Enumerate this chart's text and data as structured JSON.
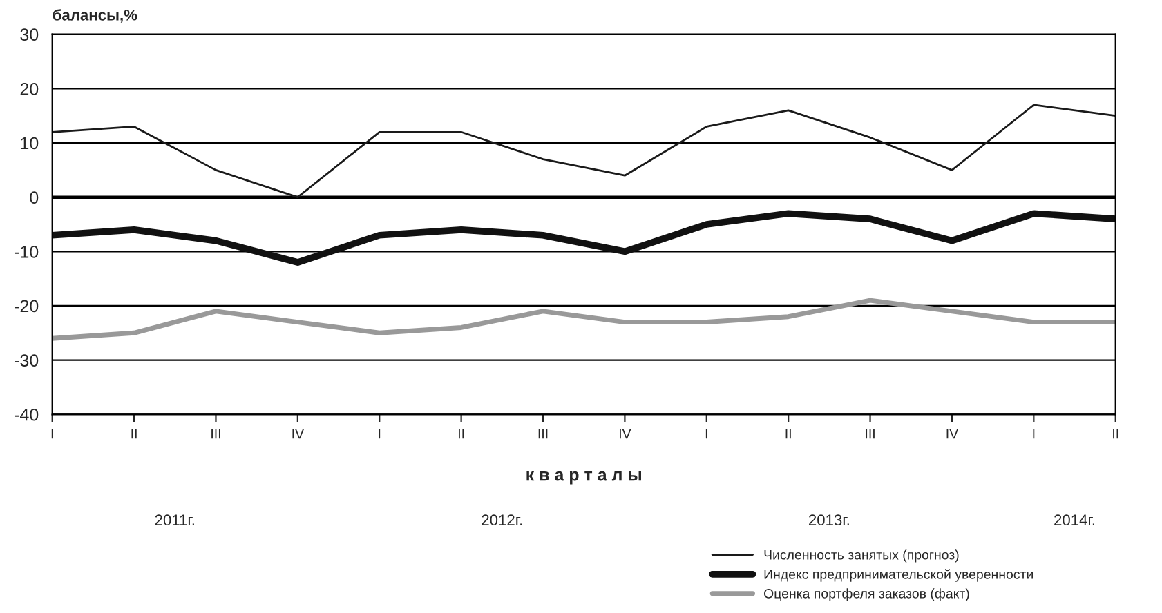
{
  "chart_data": {
    "type": "line",
    "ylabel": "балансы,%",
    "xlabel": "к в а р т а л ы",
    "categories": [
      "I",
      "II",
      "III",
      "IV",
      "I",
      "II",
      "III",
      "IV",
      "I",
      "II",
      "III",
      "IV",
      "I",
      "II"
    ],
    "series": [
      {
        "name": "Численность занятых (прогноз)",
        "color": "#1a1a1a",
        "values": [
          12,
          13,
          5,
          0,
          12,
          12,
          7,
          4,
          13,
          16,
          11,
          5,
          17,
          15
        ]
      },
      {
        "name": "Индекс предпринимательской уверенности",
        "color": "#111111",
        "values": [
          -7,
          -6,
          -8,
          -12,
          -7,
          -6,
          -7,
          -10,
          -5,
          -3,
          -4,
          -8,
          -3,
          -4
        ]
      },
      {
        "name": "Оценка портфеля заказов (факт)",
        "color": "#999999",
        "values": [
          -26,
          -25,
          -21,
          -23,
          -25,
          -24,
          -21,
          -23,
          -23,
          -22,
          -19,
          -21,
          -23,
          -23
        ]
      }
    ],
    "annotations": [
      "2011г.",
      "2012г.",
      "2013г.",
      "2014г."
    ],
    "ylim": [
      -40,
      30
    ],
    "yticks": [
      -40,
      -30,
      -20,
      -10,
      0,
      10,
      20,
      30
    ],
    "ref_lines": [
      {
        "axis": "y",
        "value": 0,
        "color": "#000000"
      }
    ],
    "grid": "y",
    "legend": "bottom right",
    "marker": "none",
    "line_style": "solid"
  }
}
